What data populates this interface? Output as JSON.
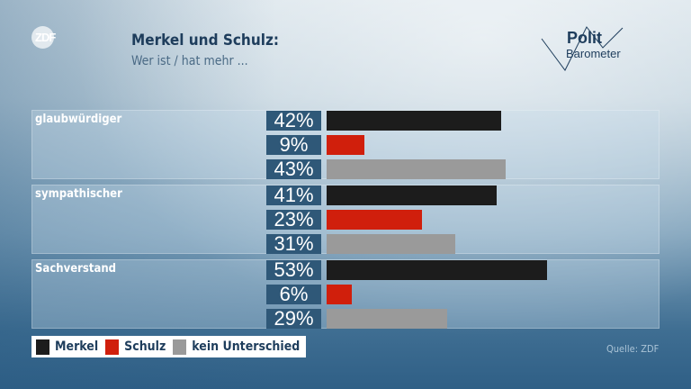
{
  "logo": "ZDF",
  "title": "Merkel und Schulz:",
  "subtitle": "Wer ist / hat mehr ...",
  "brand": {
    "line1": "Polit",
    "line2": "Barometer"
  },
  "source": "Quelle: ZDF",
  "chart_data": {
    "type": "bar",
    "orientation": "horizontal",
    "categories": [
      "glaubwürdiger",
      "sympathischer",
      "Sachverstand"
    ],
    "unit": "%",
    "series": [
      {
        "name": "Merkel",
        "color": "#1c1c1c",
        "values": [
          42,
          41,
          53
        ],
        "labels": [
          "42%",
          "41%",
          "53%"
        ]
      },
      {
        "name": "Schulz",
        "color": "#d01f0c",
        "values": [
          9,
          23,
          6
        ],
        "labels": [
          "9%",
          "23%",
          "6%"
        ]
      },
      {
        "name": "kein Unterschied",
        "color": "#9a9a9a",
        "values": [
          43,
          31,
          29
        ],
        "labels": [
          "43%",
          "31%",
          "29%"
        ]
      }
    ],
    "legend": "bottom-left"
  }
}
